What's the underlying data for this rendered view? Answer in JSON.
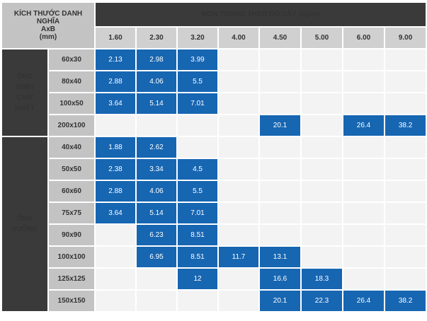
{
  "header": {
    "corner_lines": [
      "KÍCH THƯỚC DANH NGHĨA",
      "AxB",
      "(mm)"
    ],
    "main_title": "ĐƠN TRỌNG THEO ĐỘ DÀY (kg/m)",
    "thicknesses": [
      "1.60",
      "2.30",
      "3.20",
      "4.00",
      "4.50",
      "5.00",
      "6.00",
      "9.00"
    ]
  },
  "groups": [
    {
      "label_lines": [
        "ỐNG",
        "HÌNH",
        "CHỮ",
        "NHẬT"
      ],
      "rows": [
        {
          "size": "60x30",
          "values": [
            "2.13",
            "2.98",
            "3.99",
            "",
            "",
            "",
            "",
            ""
          ]
        },
        {
          "size": "80x40",
          "values": [
            "2.88",
            "4.06",
            "5.5",
            "",
            "",
            "",
            "",
            ""
          ]
        },
        {
          "size": "100x50",
          "values": [
            "3.64",
            "5.14",
            "7.01",
            "",
            "",
            "",
            "",
            ""
          ]
        },
        {
          "size": "200x100",
          "values": [
            "",
            "",
            "",
            "",
            "20.1",
            "",
            "26.4",
            "38.2"
          ]
        }
      ]
    },
    {
      "label_lines": [
        "ỐNG",
        "VUÔNG"
      ],
      "rows": [
        {
          "size": "40x40",
          "values": [
            "1.88",
            "2.62",
            "",
            "",
            "",
            "",
            "",
            ""
          ]
        },
        {
          "size": "50x50",
          "values": [
            "2.38",
            "3.34",
            "4.5",
            "",
            "",
            "",
            "",
            ""
          ]
        },
        {
          "size": "60x60",
          "values": [
            "2.88",
            "4.06",
            "5.5",
            "",
            "",
            "",
            "",
            ""
          ]
        },
        {
          "size": "75x75",
          "values": [
            "3.64",
            "5.14",
            "7.01",
            "",
            "",
            "",
            "",
            ""
          ]
        },
        {
          "size": "90x90",
          "values": [
            "",
            "6.23",
            "8.51",
            "",
            "",
            "",
            "",
            ""
          ]
        },
        {
          "size": "100x100",
          "values": [
            "",
            "6.95",
            "8.51",
            "11.7",
            "13.1",
            "",
            "",
            ""
          ]
        },
        {
          "size": "125x125",
          "values": [
            "",
            "",
            "12",
            "",
            "16.6",
            "18.3",
            "",
            ""
          ]
        },
        {
          "size": "150x150",
          "values": [
            "",
            "",
            "",
            "",
            "20.1",
            "22.3",
            "26.4",
            "38.2"
          ]
        }
      ]
    }
  ],
  "colors": {
    "value_cell": "#1766b2",
    "empty_cell": "#f3f3f3",
    "header_dark": "#3a3a3a",
    "header_light": "#c3c3c3"
  }
}
